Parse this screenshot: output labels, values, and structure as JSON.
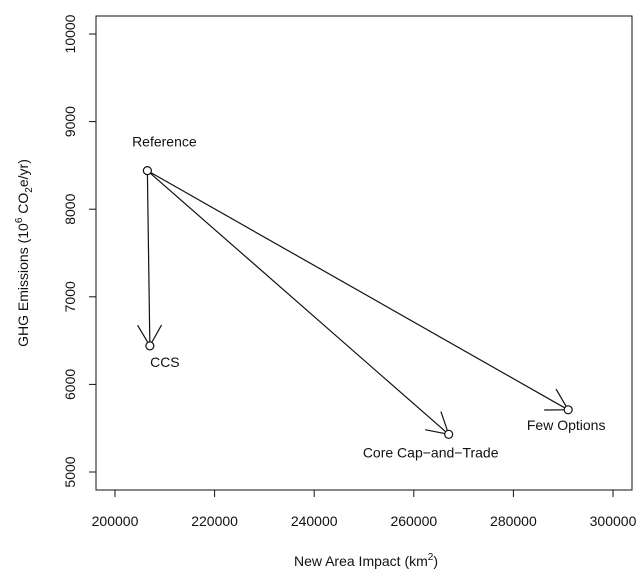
{
  "chart_data": {
    "type": "scatter",
    "title": "",
    "xlabel": "New Area Impact (km",
    "xlabel_sup": "2",
    "xlabel_tail": ")",
    "ylabel": "GHG Emissions (10",
    "ylabel_sup": "6",
    "ylabel_mid": " CO",
    "ylabel_sub": "2",
    "ylabel_tail": "e/yr)",
    "xlim": [
      200000,
      300000
    ],
    "ylim": [
      5000,
      10000
    ],
    "grid": false,
    "xticks": [
      200000,
      220000,
      240000,
      260000,
      280000,
      300000
    ],
    "yticks": [
      5000,
      6000,
      7000,
      8000,
      9000,
      10000
    ],
    "points": [
      {
        "label": "Reference",
        "x": 206500,
        "y": 8440
      },
      {
        "label": "CCS",
        "x": 207000,
        "y": 6440
      },
      {
        "label": "Core Cap−and−Trade",
        "x": 267000,
        "y": 5430
      },
      {
        "label": "Few Options",
        "x": 291000,
        "y": 5710
      }
    ],
    "arrows": [
      {
        "from": "Reference",
        "to": "CCS"
      },
      {
        "from": "Reference",
        "to": "Core Cap−and−Trade"
      },
      {
        "from": "Reference",
        "to": "Few Options"
      }
    ]
  }
}
